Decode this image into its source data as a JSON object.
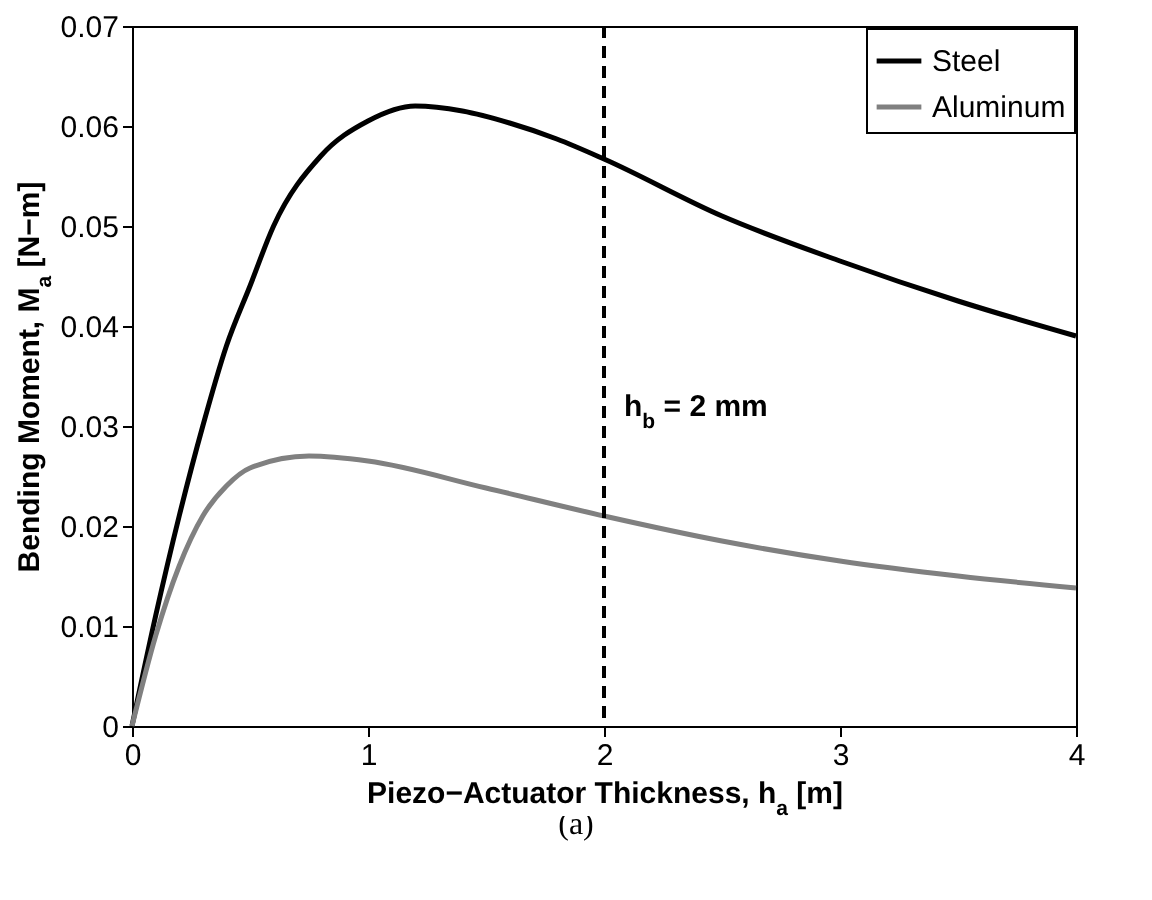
{
  "chart_data": {
    "type": "line",
    "xlabel": "Piezo−Actuator Thickness, h$_{a}$ [m]",
    "ylabel": "Bending Moment, M$_{a}$ [N−m]",
    "xlim": [
      0,
      4
    ],
    "xticks": [
      0,
      1,
      2,
      3,
      4
    ],
    "ylim": [
      0,
      0.07
    ],
    "yticks": [
      0,
      0.01,
      0.02,
      0.03,
      0.04,
      0.05,
      0.06,
      0.07
    ],
    "grid": false,
    "legend": "top right",
    "series": [
      {
        "name": "Steel",
        "color": "#000000",
        "x": [
          0,
          0.1,
          0.2,
          0.3,
          0.4,
          0.5,
          0.6,
          0.8,
          1.0,
          1.2,
          1.4,
          1.6,
          1.8,
          2.0,
          2.5,
          3.0,
          3.5,
          4.0
        ],
        "values": [
          0,
          0.011,
          0.021,
          0.03,
          0.038,
          0.044,
          0.05,
          0.057,
          0.0605,
          0.062,
          0.0615,
          0.0603,
          0.0587,
          0.0567,
          0.051,
          0.0465,
          0.0425,
          0.039
        ]
      },
      {
        "name": "Aluminum",
        "color": "#808080",
        "x": [
          0,
          0.1,
          0.2,
          0.3,
          0.4,
          0.5,
          0.75,
          1.0,
          1.5,
          2.0,
          2.5,
          3.0,
          3.5,
          4.0
        ],
        "values": [
          0,
          0.009,
          0.016,
          0.021,
          0.024,
          0.0258,
          0.027,
          0.0265,
          0.0238,
          0.021,
          0.0185,
          0.0165,
          0.015,
          0.0138
        ]
      }
    ],
    "ref_lines": [
      {
        "axis": "x",
        "value": 2,
        "label": "h$_{b}$ = 2 mm",
        "color": "#000000",
        "line_style": "dashed"
      }
    ],
    "annotations": [
      "(a)"
    ]
  }
}
